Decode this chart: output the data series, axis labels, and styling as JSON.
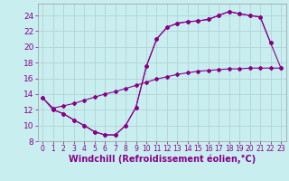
{
  "xlabel": "Windchill (Refroidissement éolien,°C)",
  "background_color": "#c8eef0",
  "grid_color": "#b0cdd0",
  "line_color": "#880088",
  "xlim": [
    -0.5,
    23.5
  ],
  "ylim": [
    8,
    25.5
  ],
  "xticks": [
    0,
    1,
    2,
    3,
    4,
    5,
    6,
    7,
    8,
    9,
    10,
    11,
    12,
    13,
    14,
    15,
    16,
    17,
    18,
    19,
    20,
    21,
    22,
    23
  ],
  "yticks": [
    8,
    10,
    12,
    14,
    16,
    18,
    20,
    22,
    24
  ],
  "line1_x": [
    0,
    1,
    2,
    3,
    4,
    5,
    6,
    7,
    8,
    9,
    10,
    11,
    12,
    13,
    14,
    15,
    16,
    17,
    18,
    19,
    20,
    21,
    22
  ],
  "line1_y": [
    13.5,
    12.0,
    11.5,
    10.7,
    10.0,
    9.2,
    8.8,
    8.8,
    10.0,
    12.3,
    17.5,
    21.0,
    22.5,
    23.0,
    23.2,
    23.3,
    23.5,
    24.0,
    24.5,
    24.2,
    24.0,
    23.8,
    20.5
  ],
  "line2_x": [
    1,
    2,
    3,
    4,
    5,
    6,
    7,
    8,
    9,
    10,
    11,
    12,
    13,
    14,
    15,
    16,
    17,
    18,
    19,
    20,
    21,
    22,
    23
  ],
  "line2_y": [
    12.0,
    11.5,
    10.7,
    10.0,
    9.2,
    8.8,
    8.8,
    10.0,
    12.3,
    17.5,
    21.0,
    22.5,
    23.0,
    23.2,
    23.3,
    23.5,
    24.0,
    24.5,
    24.2,
    24.0,
    23.8,
    20.5,
    17.3
  ],
  "line3_x": [
    0,
    1,
    2,
    3,
    4,
    5,
    6,
    7,
    8,
    9,
    10,
    11,
    12,
    13,
    14,
    15,
    16,
    17,
    18,
    19,
    20,
    21,
    22,
    23
  ],
  "line3_y": [
    13.5,
    12.2,
    12.5,
    12.8,
    13.2,
    13.6,
    14.0,
    14.3,
    14.7,
    15.1,
    15.5,
    15.9,
    16.2,
    16.5,
    16.7,
    16.9,
    17.0,
    17.1,
    17.2,
    17.2,
    17.3,
    17.3,
    17.3,
    17.3
  ],
  "tick_fontsize": 6,
  "xlabel_fontsize": 7
}
